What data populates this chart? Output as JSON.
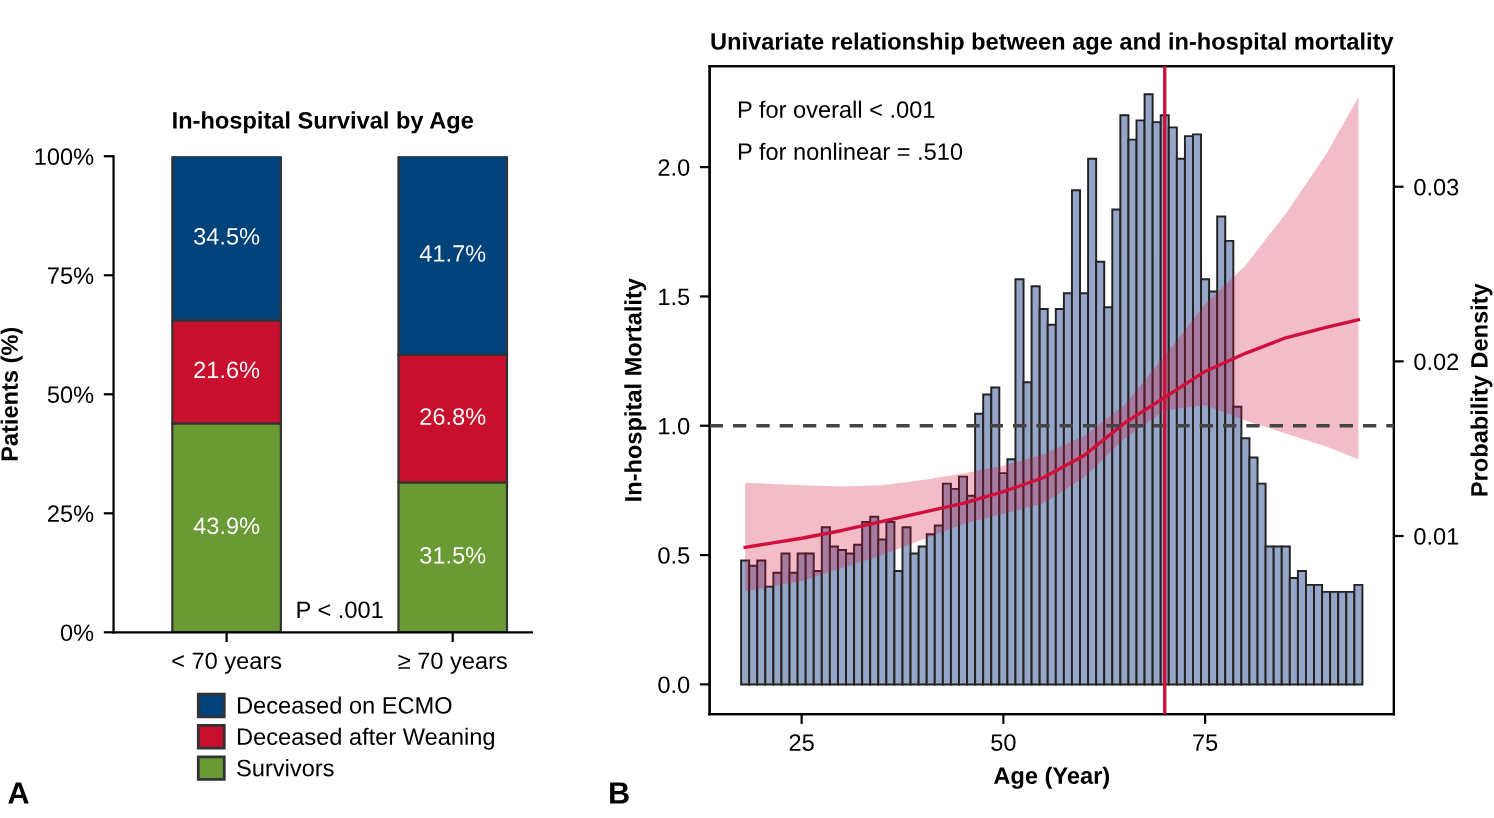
{
  "chart_data": [
    {
      "type": "bar",
      "title": "In-hospital Survival by Age",
      "ylabel": "Patients (%)",
      "stacked": true,
      "categories": [
        "< 70 years",
        "≥ 70 years"
      ],
      "series": [
        {
          "name": "Survivors",
          "color": "#6a9a34",
          "values": [
            43.9,
            31.5
          ],
          "value_labels": [
            "43.9%",
            "31.5%"
          ]
        },
        {
          "name": "Deceased after Weaning",
          "color": "#c8102e",
          "values": [
            21.6,
            26.8
          ],
          "value_labels": [
            "21.6%",
            "26.8%"
          ]
        },
        {
          "name": "Deceased on ECMO",
          "color": "#00427a",
          "values": [
            34.5,
            41.7
          ],
          "value_labels": [
            "34.5%",
            "41.7%"
          ]
        }
      ],
      "ylim": [
        0,
        100
      ],
      "yticks": [
        {
          "value": 0,
          "label": "0%"
        },
        {
          "value": 25,
          "label": "25%"
        },
        {
          "value": 50,
          "label": "50%"
        },
        {
          "value": 75,
          "label": "75%"
        },
        {
          "value": 100,
          "label": "100%"
        }
      ],
      "legend": "bottom",
      "grid": false,
      "annotations": [
        "P < .001",
        "A"
      ]
    },
    {
      "type": "histogram",
      "title": "Univariate relationship between age and in-hospital mortality",
      "xlabel": "Age (Year)",
      "ylabel": "In-hospital Mortality",
      "y2label": "Probability Density",
      "series": [
        {
          "type": "histogram",
          "axis": "y2",
          "color": "#95a6c8",
          "bins": [
            17.5,
            18.5,
            19.5,
            20.5,
            21.5,
            22.5,
            23.5,
            24.5,
            25.5,
            26.5,
            27.5,
            28.5,
            29.5,
            30.5,
            31.5,
            32.5,
            33.5,
            34.5,
            35.5,
            36.5,
            37.5,
            38.5,
            39.5,
            40.5,
            41.5,
            42.5,
            43.5,
            44.5,
            45.5,
            46.5,
            47.5,
            48.5,
            49.5,
            50.5,
            51.5,
            52.5,
            53.5,
            54.5,
            55.5,
            56.5,
            57.5,
            58.5,
            59.5,
            60.5,
            61.5,
            62.5,
            63.5,
            64.5,
            65.5,
            66.5,
            67.5,
            68.5,
            69.5,
            70.5,
            71.5,
            72.5,
            73.5,
            74.5,
            75.5,
            76.5,
            77.5,
            78.5,
            79.5,
            80.5,
            81.5,
            82.5,
            83.5,
            84.5,
            85.5,
            86.5,
            87.5,
            88.5,
            89.5,
            90.5,
            91.5,
            92.5,
            93.5,
            94.5
          ],
          "base": [
            0.0015,
            0.0015,
            0.0015,
            0.0015,
            0.0015,
            0.0015,
            0.0015,
            0.0015,
            0.0015,
            0.0015,
            0.0015,
            0.0015,
            0.0015,
            0.0015,
            0.0015,
            0.0015,
            0.0015,
            0.0015,
            0.0015,
            0.0015,
            0.0015,
            0.0015,
            0.0015,
            0.0015,
            0.0015,
            0.0015,
            0.0015,
            0.0015,
            0.0015,
            0.0015,
            0.0015,
            0.0015,
            0.0015,
            0.0015,
            0.0015,
            0.0015,
            0.0015,
            0.0015,
            0.0015,
            0.0015,
            0.0015,
            0.0015,
            0.0015,
            0.0015,
            0.0015,
            0.0015,
            0.0015,
            0.0015,
            0.0015,
            0.0015,
            0.0015,
            0.0015,
            0.0015,
            0.0015,
            0.0015,
            0.0015,
            0.0015,
            0.0015,
            0.0015,
            0.0015,
            0.0015,
            0.0015,
            0.0015,
            0.0015,
            0.0015,
            0.0015,
            0.0015,
            0.0015,
            0.0015,
            0.0015,
            0.0015,
            0.0015,
            0.0015,
            0.0015,
            0.0015,
            0.0015,
            0.0015
          ],
          "values": [
            0.0071,
            0.0068,
            0.0071,
            0.0056,
            0.0064,
            0.0075,
            0.0064,
            0.0075,
            0.0075,
            0.0065,
            0.009,
            0.0079,
            0.0077,
            0.0075,
            0.008,
            0.0093,
            0.0096,
            0.0083,
            0.0093,
            0.0065,
            0.009,
            0.0075,
            0.0079,
            0.0086,
            0.0091,
            0.0115,
            0.0112,
            0.0119,
            0.0108,
            0.0155,
            0.0166,
            0.017,
            0.0121,
            0.0129,
            0.0232,
            0.0173,
            0.0228,
            0.0215,
            0.0206,
            0.0215,
            0.0224,
            0.0283,
            0.0224,
            0.0301,
            0.0242,
            0.0216,
            0.0272,
            0.0326,
            0.0312,
            0.0323,
            0.0338,
            0.0322,
            0.0326,
            0.0319,
            0.0301,
            0.0314,
            0.0315,
            0.0232,
            0.0225,
            0.0268,
            0.0254,
            0.0159,
            0.0141,
            0.013,
            0.0115,
            0.0079,
            0.0079,
            0.0079,
            0.0061,
            0.0065,
            0.0057,
            0.0057,
            0.0053,
            0.0053,
            0.0053,
            0.0053,
            0.0057
          ]
        },
        {
          "type": "line",
          "color": "#d0103a",
          "x": [
            18,
            25,
            30,
            35,
            40,
            45,
            50,
            55,
            60,
            65,
            70,
            75,
            80,
            85,
            90,
            94
          ],
          "values": [
            0.53,
            0.565,
            0.595,
            0.63,
            0.665,
            0.7,
            0.745,
            0.8,
            0.885,
            1.01,
            1.11,
            1.21,
            1.28,
            1.34,
            1.38,
            1.41
          ],
          "lower": [
            0.36,
            0.4,
            0.45,
            0.5,
            0.56,
            0.62,
            0.66,
            0.7,
            0.8,
            0.95,
            1.06,
            1.08,
            1.02,
            0.97,
            0.92,
            0.87
          ],
          "upper": [
            0.78,
            0.77,
            0.765,
            0.77,
            0.79,
            0.815,
            0.845,
            0.89,
            0.96,
            1.08,
            1.27,
            1.47,
            1.62,
            1.82,
            2.05,
            2.27
          ]
        }
      ],
      "xlim": [
        13.6,
        98.4
      ],
      "xticks": [
        25,
        50,
        75
      ],
      "ylim": [
        -0.115,
        2.39
      ],
      "yticks": [
        {
          "value": 0,
          "label": "0.0"
        },
        {
          "value": 0.5,
          "label": "0.5"
        },
        {
          "value": 1,
          "label": "1.0"
        },
        {
          "value": 1.5,
          "label": "1.5"
        },
        {
          "value": 2,
          "label": "2.0"
        }
      ],
      "y2lim": [
        -0.0002,
        0.0369
      ],
      "y2ticks": [
        0.01,
        0.02,
        0.03
      ],
      "ref_lines": [
        {
          "axis": "y",
          "value": 1,
          "color": "#444444",
          "line_style": "dashed"
        },
        {
          "axis": "x",
          "value": 70,
          "color": "#d0103a",
          "line_style": "solid"
        }
      ],
      "grid": false,
      "annotations": [
        "P for overall < .001",
        "P for nonlinear = .510",
        "B"
      ]
    }
  ]
}
